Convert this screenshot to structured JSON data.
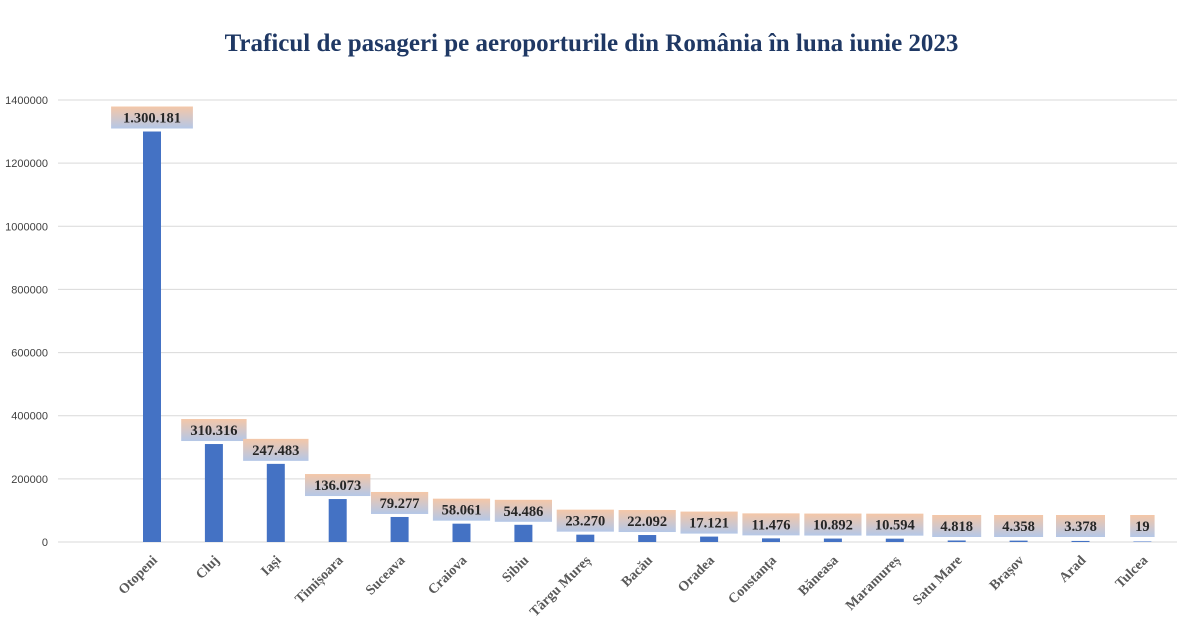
{
  "chart_data": {
    "type": "bar",
    "title": "Traficul de pasageri pe aeroporturile din România în luna iunie 2023",
    "xlabel": "",
    "ylabel": "",
    "ylim": [
      0,
      1400000
    ],
    "y_ticks": [
      "0",
      "200000",
      "400000",
      "600000",
      "800000",
      "1000000",
      "1200000",
      "1400000"
    ],
    "grid": true,
    "categories": [
      "Otopeni",
      "Cluj",
      "Iași",
      "Timișoara",
      "Suceava",
      "Craiova",
      "Sibiu",
      "Târgu Mureș",
      "Bacău",
      "Oradea",
      "Constanța",
      "Băneasa",
      "Maramureș",
      "Satu Mare",
      "Brașov",
      "Arad",
      "Tulcea"
    ],
    "values": [
      1300181,
      310316,
      247483,
      136073,
      79277,
      58061,
      54486,
      23270,
      22092,
      17121,
      11476,
      10892,
      10594,
      4818,
      4358,
      3378,
      19
    ],
    "data_labels": [
      "1.300.181",
      "310.316",
      "247.483",
      "136.073",
      "79.277",
      "58.061",
      "54.486",
      "23.270",
      "22.092",
      "17.121",
      "11.476",
      "10.892",
      "10.594",
      "4.818",
      "4.358",
      "3.378",
      "19"
    ],
    "colors": {
      "bar": "#4472c4",
      "label_box_top": "#f4c7a8",
      "label_box_bottom": "#b4c7e7",
      "grid": "#d9d9d9",
      "title": "#1f3864"
    }
  }
}
